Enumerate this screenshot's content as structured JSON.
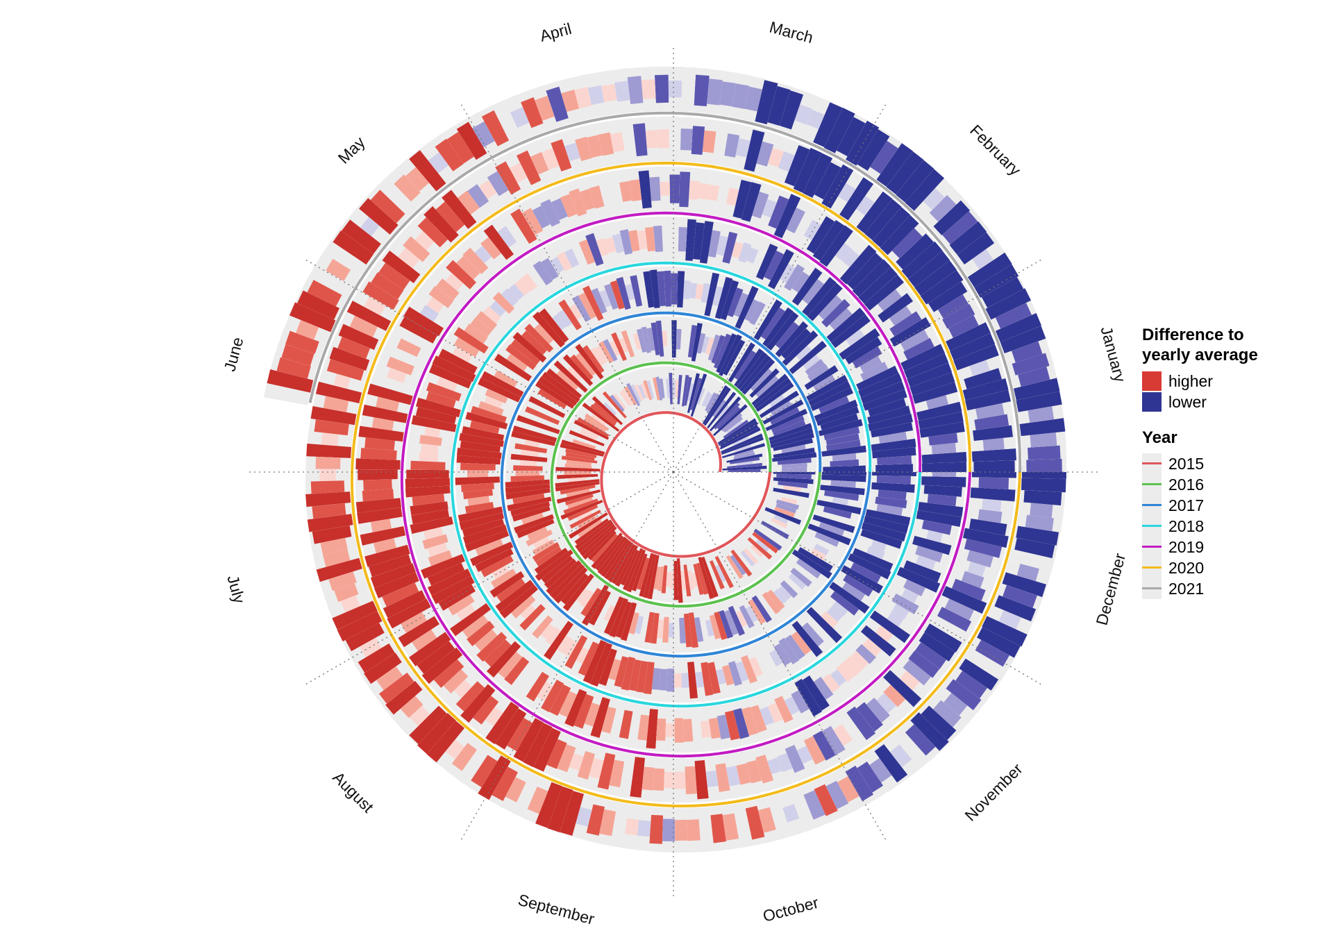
{
  "chart_data": {
    "type": "radial-spiral-heatmap",
    "title": "",
    "months": [
      "January",
      "February",
      "March",
      "April",
      "May",
      "June",
      "July",
      "August",
      "September",
      "October",
      "November",
      "December"
    ],
    "years": [
      "2015",
      "2016",
      "2017",
      "2018",
      "2019",
      "2020",
      "2021"
    ],
    "year_colors": [
      "#e0555a",
      "#5cc14f",
      "#2f85d6",
      "#2ad6dd",
      "#c21bc3",
      "#f3bb1b",
      "#a9a9a9"
    ],
    "legend": {
      "difference_title": "Difference to yearly average",
      "difference_title_line1": "Difference to",
      "difference_title_line2": "yearly average",
      "higher_label": "higher",
      "lower_label": "lower",
      "higher_color": "#d83a34",
      "lower_color": "#2f3592",
      "year_title": "Year",
      "placement": "right"
    },
    "track_background": "#ececec",
    "end_point": "June 2021"
  }
}
